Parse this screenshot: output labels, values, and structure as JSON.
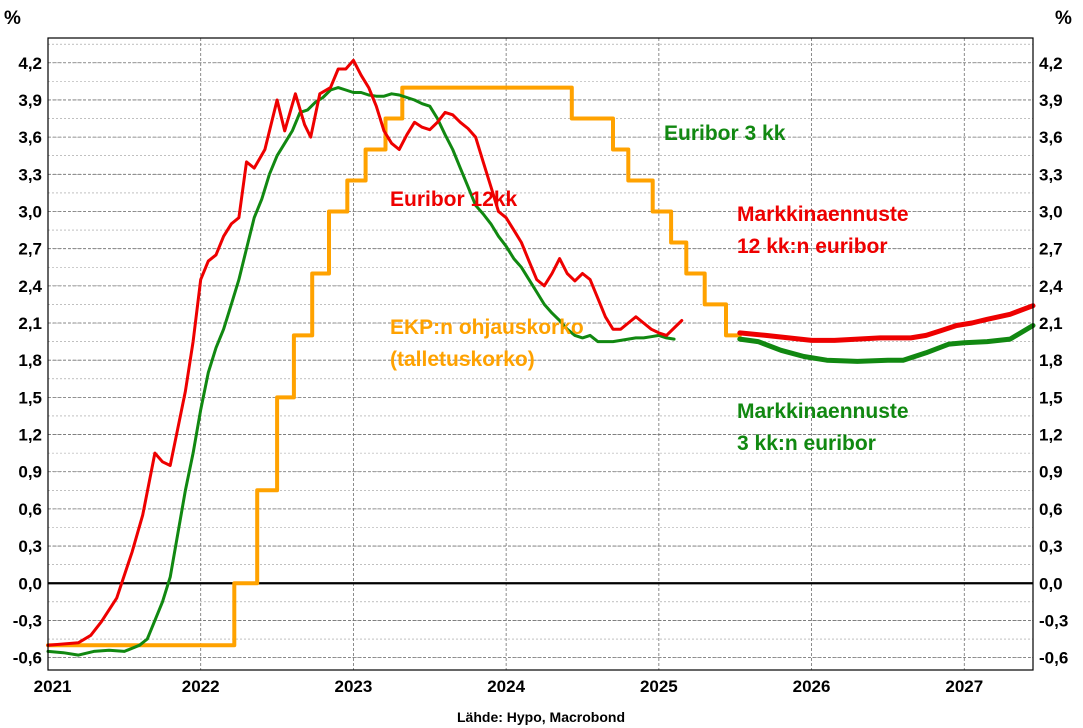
{
  "chart_data": {
    "type": "line",
    "unit_left": "%",
    "unit_right": "%",
    "source": "Lähde: Hypo, Macrobond",
    "xlim": [
      2021.0,
      2027.45
    ],
    "ylim": [
      -0.7,
      4.4
    ],
    "yticks": [
      -0.6,
      -0.3,
      0.0,
      0.3,
      0.6,
      0.9,
      1.2,
      1.5,
      1.8,
      2.1,
      2.4,
      2.7,
      3.0,
      3.3,
      3.6,
      3.9,
      4.2
    ],
    "ytick_labels": [
      "-0,6",
      "-0,3",
      "0,0",
      "0,3",
      "0,6",
      "0,9",
      "1,2",
      "1,5",
      "1,8",
      "2,1",
      "2,4",
      "2,7",
      "3,0",
      "3,3",
      "3,6",
      "3,9",
      "4,2"
    ],
    "years": [
      {
        "label": "2021",
        "x": 2021.03
      },
      {
        "label": "2022",
        "x": 2022.0
      },
      {
        "label": "2023",
        "x": 2023.0
      },
      {
        "label": "2024",
        "x": 2024.0
      },
      {
        "label": "2025",
        "x": 2025.0
      },
      {
        "label": "2026",
        "x": 2026.0
      },
      {
        "label": "2027",
        "x": 2027.0
      }
    ],
    "grid": true,
    "series": [
      {
        "name": "Euribor 12kk",
        "color": "#ee0000",
        "x": [
          2021.0,
          2021.1,
          2021.2,
          2021.28,
          2021.35,
          2021.45,
          2021.55,
          2021.62,
          2021.7,
          2021.75,
          2021.8,
          2021.85,
          2021.9,
          2021.95,
          2022.0,
          2022.05,
          2022.1,
          2022.15,
          2022.2,
          2022.25,
          2022.3,
          2022.35,
          2022.42,
          2022.5,
          2022.55,
          2022.62,
          2022.68,
          2022.72,
          2022.78,
          2022.85,
          2022.9,
          2022.95,
          2023.0,
          2023.05,
          2023.1,
          2023.15,
          2023.2,
          2023.25,
          2023.3,
          2023.35,
          2023.4,
          2023.45,
          2023.5,
          2023.55,
          2023.6,
          2023.65,
          2023.7,
          2023.75,
          2023.8,
          2023.85,
          2023.9,
          2023.95,
          2024.0,
          2024.05,
          2024.1,
          2024.15,
          2024.2,
          2024.25,
          2024.3,
          2024.35,
          2024.4,
          2024.45,
          2024.5,
          2024.55,
          2024.6,
          2024.65,
          2024.7,
          2024.75,
          2024.8,
          2024.85,
          2024.9,
          2024.95,
          2025.0,
          2025.05,
          2025.1,
          2025.15
        ],
        "y": [
          -0.5,
          -0.49,
          -0.48,
          -0.42,
          -0.31,
          -0.12,
          0.25,
          0.55,
          1.05,
          0.98,
          0.95,
          1.25,
          1.55,
          1.95,
          2.45,
          2.6,
          2.65,
          2.8,
          2.9,
          2.95,
          3.4,
          3.35,
          3.5,
          3.9,
          3.65,
          3.95,
          3.7,
          3.6,
          3.95,
          4.0,
          4.15,
          4.15,
          4.22,
          4.1,
          4.0,
          3.85,
          3.65,
          3.55,
          3.5,
          3.62,
          3.72,
          3.68,
          3.66,
          3.72,
          3.8,
          3.78,
          3.72,
          3.67,
          3.6,
          3.4,
          3.2,
          3.0,
          2.95,
          2.85,
          2.75,
          2.6,
          2.45,
          2.4,
          2.5,
          2.62,
          2.5,
          2.44,
          2.5,
          2.45,
          2.3,
          2.15,
          2.05,
          2.05,
          2.1,
          2.15,
          2.1,
          2.05,
          2.02,
          2.0,
          2.06,
          2.12
        ]
      },
      {
        "name": "Euribor 3 kk",
        "color": "#118811",
        "x": [
          2021.0,
          2021.1,
          2021.2,
          2021.3,
          2021.4,
          2021.5,
          2021.6,
          2021.65,
          2021.7,
          2021.75,
          2021.8,
          2021.85,
          2021.9,
          2021.95,
          2022.0,
          2022.05,
          2022.1,
          2022.15,
          2022.2,
          2022.25,
          2022.3,
          2022.35,
          2022.4,
          2022.45,
          2022.5,
          2022.55,
          2022.6,
          2022.65,
          2022.7,
          2022.75,
          2022.8,
          2022.85,
          2022.9,
          2022.95,
          2023.0,
          2023.05,
          2023.1,
          2023.15,
          2023.2,
          2023.25,
          2023.3,
          2023.35,
          2023.4,
          2023.45,
          2023.5,
          2023.55,
          2023.6,
          2023.65,
          2023.7,
          2023.75,
          2023.8,
          2023.85,
          2023.9,
          2023.95,
          2024.0,
          2024.05,
          2024.1,
          2024.15,
          2024.2,
          2024.25,
          2024.3,
          2024.35,
          2024.4,
          2024.45,
          2024.5,
          2024.55,
          2024.6,
          2024.65,
          2024.7,
          2024.75,
          2024.8,
          2024.85,
          2024.9,
          2024.95,
          2025.0,
          2025.05,
          2025.1
        ],
        "y": [
          -0.55,
          -0.56,
          -0.58,
          -0.55,
          -0.54,
          -0.55,
          -0.5,
          -0.45,
          -0.3,
          -0.15,
          0.05,
          0.4,
          0.75,
          1.05,
          1.4,
          1.7,
          1.9,
          2.05,
          2.25,
          2.45,
          2.7,
          2.95,
          3.1,
          3.3,
          3.45,
          3.55,
          3.65,
          3.8,
          3.82,
          3.88,
          3.92,
          3.98,
          4.0,
          3.98,
          3.96,
          3.96,
          3.94,
          3.93,
          3.93,
          3.95,
          3.94,
          3.92,
          3.9,
          3.87,
          3.85,
          3.75,
          3.62,
          3.5,
          3.35,
          3.2,
          3.05,
          2.98,
          2.9,
          2.8,
          2.72,
          2.62,
          2.55,
          2.45,
          2.35,
          2.25,
          2.18,
          2.12,
          2.05,
          2.0,
          1.98,
          2.0,
          1.95,
          1.95,
          1.95,
          1.96,
          1.97,
          1.98,
          1.98,
          1.99,
          2.0,
          1.98,
          1.97
        ]
      },
      {
        "name": "EKP:n ohjauskorko (talletuskorko)",
        "color": "#ffa200",
        "x": [
          2021.0,
          2022.22,
          2022.22,
          2022.37,
          2022.37,
          2022.5,
          2022.5,
          2022.61,
          2022.61,
          2022.73,
          2022.73,
          2022.84,
          2022.84,
          2022.96,
          2022.96,
          2023.08,
          2023.08,
          2023.21,
          2023.21,
          2023.32,
          2023.32,
          2023.44,
          2023.44,
          2023.56,
          2023.56,
          2024.43,
          2024.43,
          2024.7,
          2024.7,
          2024.8,
          2024.8,
          2024.96,
          2024.96,
          2025.08,
          2025.08,
          2025.18,
          2025.18,
          2025.3,
          2025.3,
          2025.44,
          2025.44,
          2025.53
        ],
        "y": [
          -0.5,
          -0.5,
          0.0,
          0.0,
          0.75,
          0.75,
          1.5,
          1.5,
          2.0,
          2.0,
          2.5,
          2.5,
          3.0,
          3.0,
          3.25,
          3.25,
          3.5,
          3.5,
          3.75,
          3.75,
          4.0,
          4.0,
          4.0,
          4.0,
          4.0,
          4.0,
          3.75,
          3.75,
          3.5,
          3.5,
          3.25,
          3.25,
          3.0,
          3.0,
          2.75,
          2.75,
          2.5,
          2.5,
          2.25,
          2.25,
          2.0,
          2.0
        ]
      },
      {
        "name": "Markkinaennuste 12 kk:n euribor",
        "color": "#ee0000",
        "x": [
          2025.53,
          2025.7,
          2025.85,
          2026.0,
          2026.15,
          2026.3,
          2026.45,
          2026.55,
          2026.65,
          2026.75,
          2026.85,
          2026.95,
          2027.05,
          2027.15,
          2027.3,
          2027.45
        ],
        "y": [
          2.02,
          2.0,
          1.98,
          1.96,
          1.96,
          1.97,
          1.98,
          1.98,
          1.98,
          2.0,
          2.04,
          2.08,
          2.1,
          2.13,
          2.17,
          2.24
        ]
      },
      {
        "name": "Markkinaennuste 3 kk:n euribor",
        "color": "#118811",
        "x": [
          2025.53,
          2025.65,
          2025.8,
          2025.95,
          2026.1,
          2026.3,
          2026.5,
          2026.6,
          2026.75,
          2026.9,
          2027.0,
          2027.15,
          2027.3,
          2027.45
        ],
        "y": [
          1.97,
          1.95,
          1.88,
          1.83,
          1.8,
          1.79,
          1.8,
          1.8,
          1.86,
          1.93,
          1.94,
          1.95,
          1.97,
          2.08
        ]
      }
    ],
    "annotations": [
      {
        "line1": "Euribor 3 kk",
        "line2": "",
        "color": "#118811"
      },
      {
        "line1": "Euribor 12kk",
        "line2": "",
        "color": "#ee0000"
      },
      {
        "line1": "Markkinaennuste",
        "line2": "12 kk:n euribor",
        "color": "#ee0000"
      },
      {
        "line1": "EKP:n ohjauskorko",
        "line2": "(talletuskorko)",
        "color": "#ffa200"
      },
      {
        "line1": "Markkinaennuste",
        "line2": "3 kk:n euribor",
        "color": "#118811"
      }
    ]
  }
}
